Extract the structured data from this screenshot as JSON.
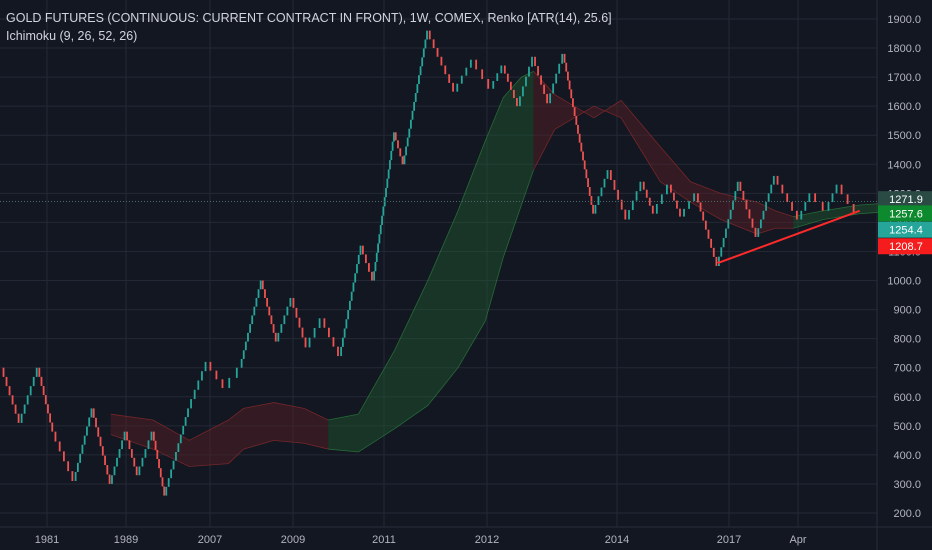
{
  "chart_data": {
    "type": "renko",
    "title": "GOLD FUTURES (CONTINUOUS: CURRENT CONTRACT IN FRONT), 1W, COMEX, Renko [ATR(14), 25.6]",
    "indicator": "Ichimoku (9, 26, 52, 26)",
    "ylim": [
      160,
      1950
    ],
    "y_ticks": [
      200,
      300,
      400,
      500,
      600,
      700,
      800,
      900,
      1000,
      1100,
      1200,
      1300,
      1400,
      1500,
      1600,
      1700,
      1800,
      1900
    ],
    "y_tick_labels": [
      "200.0",
      "300.0",
      "400.0",
      "500.0",
      "600.0",
      "700.0",
      "800.0",
      "900.0",
      "1000.0",
      "1100.0",
      "1200.0",
      "1300.0",
      "1400.0",
      "1500.0",
      "1600.0",
      "1700.0",
      "1800.0",
      "1900.0"
    ],
    "x_labels": [
      "1981",
      "1989",
      "2007",
      "2009",
      "2011",
      "2012",
      "2014",
      "2017",
      "Apr"
    ],
    "grid": true,
    "colors": {
      "background": "#131722",
      "grid": "#242836",
      "up": "#26a69a",
      "down": "#ef5350",
      "cloud_bull": "#1e5a30",
      "cloud_bear": "#5a1e26",
      "trendline": "#ff2a2a",
      "axis_text": "#b2b5be",
      "price_line": "#4a6a6a"
    },
    "renko_path": [
      [
        0,
        700
      ],
      [
        6,
        510
      ],
      [
        12,
        700
      ],
      [
        17,
        480
      ],
      [
        24,
        310
      ],
      [
        30,
        560
      ],
      [
        36,
        300
      ],
      [
        41,
        480
      ],
      [
        45,
        330
      ],
      [
        50,
        480
      ],
      [
        54,
        260
      ],
      [
        62,
        560
      ],
      [
        68,
        720
      ],
      [
        74,
        630
      ],
      [
        79,
        700
      ],
      [
        86,
        1000
      ],
      [
        91,
        790
      ],
      [
        96,
        940
      ],
      [
        101,
        770
      ],
      [
        106,
        870
      ],
      [
        112,
        740
      ],
      [
        119,
        1120
      ],
      [
        123,
        1000
      ],
      [
        130,
        1510
      ],
      [
        133,
        1400
      ],
      [
        141,
        1860
      ],
      [
        150,
        1650
      ],
      [
        156,
        1760
      ],
      [
        162,
        1660
      ],
      [
        166,
        1740
      ],
      [
        171,
        1600
      ],
      [
        176,
        1770
      ],
      [
        181,
        1610
      ],
      [
        186,
        1780
      ],
      [
        196,
        1230
      ],
      [
        201,
        1380
      ],
      [
        207,
        1210
      ],
      [
        212,
        1340
      ],
      [
        216,
        1230
      ],
      [
        221,
        1330
      ],
      [
        225,
        1220
      ],
      [
        230,
        1300
      ],
      [
        237,
        1050
      ],
      [
        244,
        1340
      ],
      [
        250,
        1150
      ],
      [
        256,
        1360
      ],
      [
        264,
        1210
      ],
      [
        268,
        1300
      ],
      [
        273,
        1240
      ],
      [
        277,
        1330
      ],
      [
        283,
        1230
      ]
    ],
    "price_labels": [
      {
        "label": "1271.9",
        "value": 1280,
        "color": "#2a4a44"
      },
      {
        "label": "1257.6",
        "value": 1231,
        "color": "#0e8a2e"
      },
      {
        "label": "1254.4",
        "value": 1175,
        "color": "#26a69a"
      },
      {
        "label": "1208.7",
        "value": 1118,
        "color": "#f41c1c"
      }
    ],
    "price_line_value": 1271.9,
    "partial_tick_label": "1300.0",
    "trendline": {
      "from": [
        237,
        1060
      ],
      "to": [
        284,
        1240
      ]
    },
    "cloud_bull_1": [
      [
        108,
        420,
        520
      ],
      [
        118,
        410,
        540
      ],
      [
        130,
        490,
        760
      ],
      [
        141,
        570,
        1000
      ],
      [
        151,
        700,
        1240
      ],
      [
        160,
        860,
        1480
      ],
      [
        166,
        1080,
        1630
      ],
      [
        172,
        1260,
        1700
      ],
      [
        176,
        1380,
        1720
      ]
    ],
    "cloud_bear_1": [
      [
        36,
        470,
        540
      ],
      [
        50,
        420,
        520
      ],
      [
        62,
        360,
        450
      ],
      [
        75,
        370,
        520
      ],
      [
        80,
        420,
        560
      ],
      [
        90,
        450,
        580
      ],
      [
        100,
        440,
        560
      ],
      [
        108,
        420,
        520
      ]
    ],
    "cloud_bear_2": [
      [
        176,
        1380,
        1720
      ],
      [
        183,
        1520,
        1640
      ],
      [
        196,
        1600,
        1560
      ],
      [
        205,
        1560,
        1620
      ],
      [
        218,
        1340,
        1460
      ],
      [
        228,
        1270,
        1340
      ],
      [
        238,
        1210,
        1300
      ],
      [
        250,
        1160,
        1270
      ],
      [
        256,
        1180,
        1240
      ],
      [
        262,
        1180,
        1220
      ]
    ],
    "cloud_bull_2": [
      [
        262,
        1180,
        1220
      ],
      [
        272,
        1210,
        1240
      ],
      [
        284,
        1230,
        1260
      ],
      [
        298,
        1240,
        1270
      ]
    ]
  }
}
